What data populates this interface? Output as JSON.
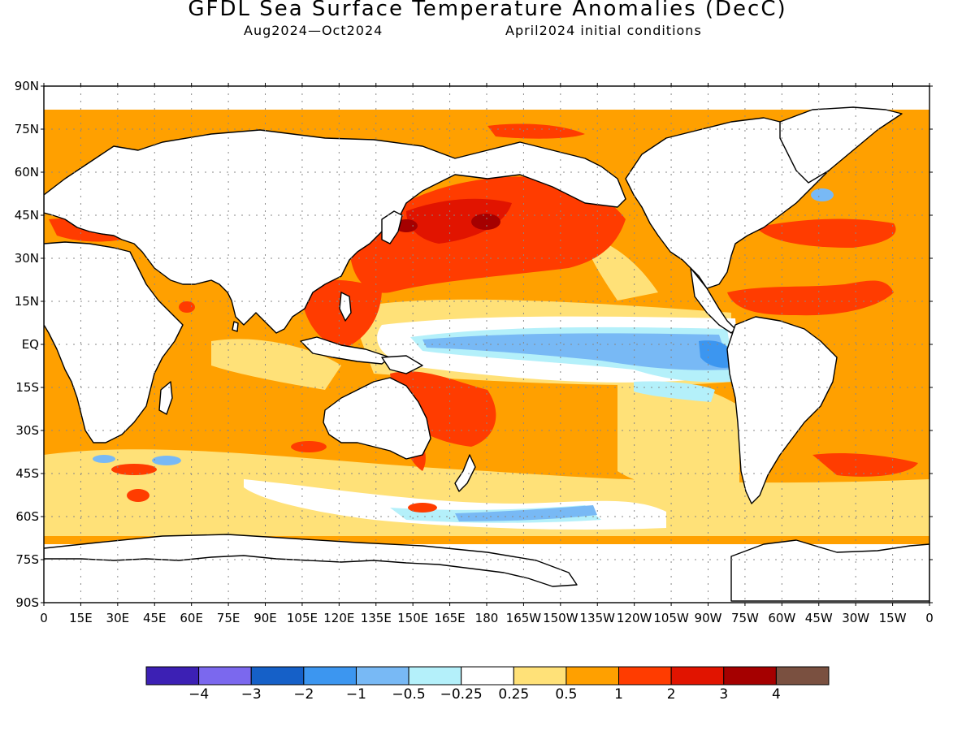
{
  "title": "GFDL Sea Surface Temperature Anomalies (DecC)",
  "subtitle_period": "Aug2024—Oct2024",
  "subtitle_init": "April2024 initial conditions",
  "lat_labels": [
    "90N",
    "75N",
    "60N",
    "45N",
    "30N",
    "15N",
    "EQ",
    "15S",
    "30S",
    "45S",
    "60S",
    "75S",
    "90S"
  ],
  "lon_labels": [
    "0",
    "15E",
    "30E",
    "45E",
    "60E",
    "75E",
    "90E",
    "105E",
    "120E",
    "135E",
    "150E",
    "165E",
    "180",
    "165W",
    "150W",
    "135W",
    "120W",
    "105W",
    "90W",
    "75W",
    "60W",
    "45W",
    "30W",
    "15W",
    "0"
  ],
  "colorbar": {
    "colors": [
      "#3c20b4",
      "#7b68ee",
      "#1560c8",
      "#3c96f0",
      "#78b9f5",
      "#b4f0fa",
      "#ffffff",
      "#ffe178",
      "#ffa000",
      "#ff3c00",
      "#e11400",
      "#a50000",
      "#7a5040"
    ],
    "labels": [
      "−4",
      "−3",
      "−2",
      "−1",
      "−0.5",
      "−0.25",
      "0.25",
      "0.5",
      "1",
      "2",
      "3",
      "4"
    ]
  },
  "colors": {
    "warm_light": "#ffe178",
    "warm": "#ffa000",
    "hot": "#ff3c00",
    "hotter": "#e11400",
    "hottest": "#a50000",
    "cool_light": "#b4f0fa",
    "cool": "#78b9f5",
    "cooler": "#3c96f0"
  }
}
